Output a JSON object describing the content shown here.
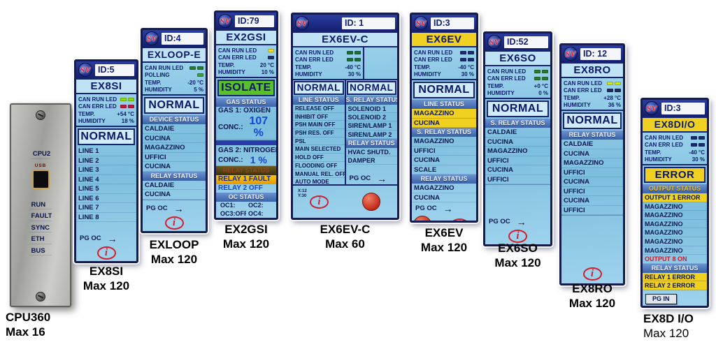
{
  "colors": {
    "navy": "#0c1a6a",
    "header-blue": "#2a3da0",
    "band-blue": "#4a74b8",
    "lcd-light": "#a8d8f0",
    "accent-yellow": "#f0d020",
    "accent-green": "#57c02a",
    "accent-red": "#d02030",
    "value-blue": "#1446d8"
  },
  "icons": {
    "arrow_right": "→",
    "info": "i",
    "sv_logo": "SV"
  },
  "panels": {
    "cpu360": {
      "top_leds": [
        "CPU2"
      ],
      "usb_label": "USB",
      "bottom_leds": [
        "RUN",
        "FAULT",
        "SYNC",
        "ETH",
        "BUS"
      ],
      "caption": "CPU360",
      "max": "Max 16"
    },
    "ex8si": {
      "id_label": "ID:5",
      "title": "EX8SI",
      "state": "NORMAL",
      "status": [
        {
          "label": "CAN RUN LED",
          "leds": [
            "#8ae000",
            "#8ae000"
          ]
        },
        {
          "label": "CAN ERR LED",
          "leds": [
            "#c01838",
            "#c01838"
          ]
        },
        {
          "label": "TEMP.",
          "value": "+54 °C"
        },
        {
          "label": "HUMIDITY",
          "value": "18 %"
        }
      ],
      "lines": [
        "LINE 1",
        "LINE 2",
        "LINE 3",
        "LINE 4",
        "LINE 5",
        "LINE 6",
        "LINE 7",
        "LINE 8"
      ],
      "pg_label": "PG OC",
      "caption": "EX8SI",
      "max": "Max 120"
    },
    "exloop": {
      "id_label": "ID:4",
      "title": "EXLOOP-E",
      "state": "NORMAL",
      "status": [
        {
          "label": "CAN RUN LED",
          "leds": [
            "#2a7a2a",
            "#2a7a2a"
          ]
        },
        {
          "label": "POLLING",
          "leds": [
            "#3aa03a"
          ]
        },
        {
          "label": "TEMP.",
          "value": "-20 °C"
        },
        {
          "label": "HUMIDITY",
          "value": "5 %"
        }
      ],
      "device_section": "DEVICE STATUS",
      "devices": [
        "CALDAIE",
        "CUCINA",
        "MAGAZZINO",
        "UFFICI",
        "CUCINA"
      ],
      "relay_section": "RELAY STATUS",
      "relays": [
        "CALDAIE",
        "CUCINA"
      ],
      "pg_label": "PG OC",
      "caption": "EXLOOP",
      "max": "Max 120"
    },
    "ex2gsi": {
      "id_label": "ID:79",
      "title": "EX2GSI",
      "state": "ISOLATE",
      "status": [
        {
          "label": "CAN RUN LED",
          "leds": [
            "#e8e020"
          ]
        },
        {
          "label": "CAN ERR LED",
          "leds": [
            "#24306a"
          ]
        },
        {
          "label": "TEMP.",
          "value": "20 °C"
        },
        {
          "label": "HUMIDITY",
          "value": "10 %"
        }
      ],
      "gas_section": "GAS STATUS",
      "gas1_label": "GAS 1: OXIGEN",
      "conc_label": "CONC.:",
      "conc1_value": "107 %",
      "gas2_label": "GAS 2: NITROGEN",
      "conc2_value": "1 %",
      "relay_section": "RELAY STATUS",
      "relay1": "RELAY 1  FAULT",
      "relay2": "RELAY 2  OFF",
      "oc_section": "OC STATUS",
      "oc": [
        "OC1:",
        "OC2:",
        "OC3:OFF",
        "OC4:",
        "OC5:OFF",
        "OC6:",
        "OC7:OFF"
      ],
      "caption": "EX2GSI",
      "max": "Max 120"
    },
    "ex6evc": {
      "id_label": "ID: 1",
      "title": "EX6EV-C",
      "status": [
        {
          "label": "CAN RUN LED",
          "leds": [
            "#1e6e2e",
            "#1e6e2e"
          ]
        },
        {
          "label": "CAN ERR LED",
          "leds": [
            "#1e6e2e",
            "#1e6e2e"
          ]
        },
        {
          "label": "TEMP.",
          "value": "-40 °C"
        },
        {
          "label": "HUMIDITY",
          "value": "30 %"
        }
      ],
      "left_state": "NORMAL",
      "right_state": "NORMAL",
      "line_section": "LINE STATUS",
      "line_status": [
        "RELEASE OFF",
        "INHIBIT OFF",
        "PSH MAIN OFF",
        "PSH RES. OFF",
        "PSL",
        "MAIN SELECTED",
        "HOLD OFF",
        "FLOODING OFF",
        "MANUAL REL. OFF",
        "AUTO MODE"
      ],
      "s_relay_section": "S. RELAY STATUS",
      "s_relays": [
        "SOLENOID 1",
        "SOLENOID 2",
        "SIREN/LAMP 1",
        "SIREN/LAMP 2"
      ],
      "relay_section": "RELAY STATUS",
      "relays": [
        "HVAC SHUTD.",
        "DAMPER"
      ],
      "pg_label": "PG OC",
      "xy": [
        "X:12",
        "Y:30"
      ],
      "caption": "EX6EV-C",
      "max": "Max 60"
    },
    "ex6ev": {
      "id_label": "ID:3",
      "title": "EX6EV",
      "state": "NORMAL",
      "status": [
        {
          "label": "CAN RUN LED",
          "leds": [
            "#1c2a6e",
            "#1c2a6e"
          ]
        },
        {
          "label": "CAN ERR LED",
          "leds": [
            "#1c2a6e",
            "#1c2a6e"
          ]
        },
        {
          "label": "TEMP.",
          "value": "-40 °C"
        },
        {
          "label": "HUMIDITY",
          "value": "30 %"
        }
      ],
      "line_section": "LINE STATUS",
      "lines": [
        {
          "label": "MAGAZZINO",
          "cls": "hl"
        },
        {
          "label": "CUCINA",
          "cls": "hl"
        }
      ],
      "s_relay_section": "S. RELAY STATUS",
      "s_relays": [
        "MAGAZZINO",
        "UFFICI",
        "CUCINA",
        "SCALE"
      ],
      "relay_section": "RELAY STATUS",
      "relays": [
        "MAGAZZINO",
        "CUCINA"
      ],
      "pg_label": "PG OC",
      "caption": "EX6EV",
      "max": "Max 120"
    },
    "ex6so": {
      "id_label": "ID:52",
      "title": "EX6SO",
      "state": "NORMAL",
      "status": [
        {
          "label": "CAN RUN LED",
          "leds": [
            "#2a7a2a",
            "#2a7a2a"
          ]
        },
        {
          "label": "CAN ERR LED",
          "leds": [
            "#2a7a2a",
            "#2a7a2a"
          ]
        },
        {
          "label": "TEMP.",
          "value": "+0 °C"
        },
        {
          "label": "HUMIDITY",
          "value": "0 %"
        }
      ],
      "s_relay_section": "S. RELAY STATUS",
      "s_relays": [
        "CALDAIE",
        "CUCINA",
        "MAGAZZINO",
        "UFFICI",
        "CUCINA",
        "UFFICI"
      ],
      "pg_label": "PG OC",
      "caption": "EX6SO",
      "max": "Max 120"
    },
    "ex8ro": {
      "id_label": "ID: 12",
      "title": "EX8RO",
      "state": "NORMAL",
      "status": [
        {
          "label": "CAN RUN LED",
          "leds": [
            "#c6e428",
            "#c6e428"
          ]
        },
        {
          "label": "CAN ERR LED",
          "leds": [
            "#222a58",
            "#222a58"
          ]
        },
        {
          "label": "TEMP.",
          "value": "+28 °C"
        },
        {
          "label": "HUMIDITY",
          "value": "36 %"
        }
      ],
      "relay_section": "RELAY STATUS",
      "relays": [
        "CALDAIE",
        "CUCINA",
        "MAGAZZINO",
        "UFFICI",
        "CUCINA",
        "UFFICI",
        "CUCINA",
        "UFFICI"
      ],
      "caption": "EX8RO",
      "max": "Max 120"
    },
    "ex8dio": {
      "id_label": "ID:3",
      "title": "EX8DI/O",
      "state": "ERROR",
      "status": [
        {
          "label": "CAN RUN LED",
          "leds": [
            "#1c2a6e",
            "#1c2a6e"
          ]
        },
        {
          "label": "CAN ERR LED",
          "leds": [
            "#1c2a6e",
            "#1c2a6e"
          ]
        },
        {
          "label": "TEMP.",
          "value": "-40 °C"
        },
        {
          "label": "HUMIDITY",
          "value": "30 %"
        }
      ],
      "output_section": "OUTPUT STATUS",
      "outputs": [
        {
          "label": "OUTPUT 1  ERROR",
          "cls": "hl"
        },
        "MAGAZZINO",
        "MAGAZZINO",
        "MAGAZZINO",
        "MAGAZZINO",
        "MAGAZZINO",
        "MAGAZZINO",
        {
          "label": "OUTPUT 8  ON",
          "cls": "red"
        }
      ],
      "relay_section": "RELAY STATUS",
      "relays": [
        {
          "label": "RELAY 1  ERROR",
          "cls": "hl"
        },
        {
          "label": "RELAY 2  ERROR",
          "cls": "hl"
        }
      ],
      "pg_in": "PG IN",
      "caption": "EX8D I/O",
      "max": "Max 120"
    }
  }
}
